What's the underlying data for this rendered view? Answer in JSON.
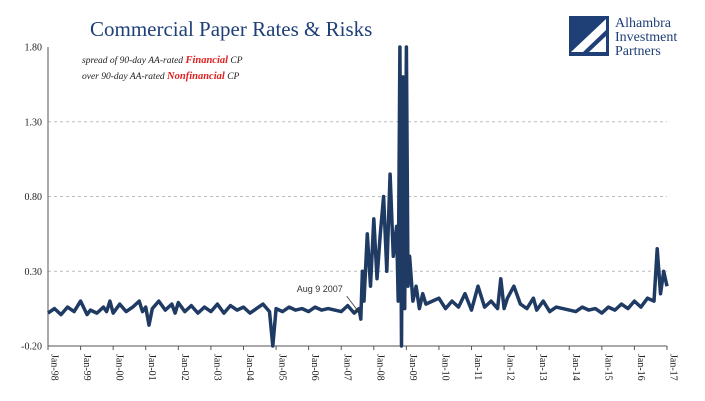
{
  "chart_data": {
    "type": "line",
    "title": "Commercial Paper Rates & Risks",
    "subtitle_lines": [
      {
        "pre": "spread of 90-day AA-rated ",
        "em": "Financial",
        "post": " CP"
      },
      {
        "pre": "over 90-day AA-rated ",
        "em": "Nonfinancial",
        "post": " CP"
      }
    ],
    "xlabel": "",
    "ylabel": "",
    "ylim": [
      -0.2,
      1.8
    ],
    "y_ticks": [
      "1.80",
      "1.30",
      "0.80",
      "0.30",
      "-0.20"
    ],
    "y_tick_values": [
      1.8,
      1.3,
      0.8,
      0.3,
      -0.2
    ],
    "x_ticks": [
      "Jan-98",
      "Jan-99",
      "Jan-00",
      "Jan-01",
      "Jan-02",
      "Jan-03",
      "Jan-04",
      "Jan-05",
      "Jan-06",
      "Jan-07",
      "Jan-08",
      "Jan-09",
      "Jan-10",
      "Jan-11",
      "Jan-12",
      "Jan-13",
      "Jan-14",
      "Jan-15",
      "Jan-16",
      "Jan-17"
    ],
    "xlim": [
      1998.0,
      2017.0
    ],
    "grid": true,
    "line_color": "#1f3a63",
    "annotation": {
      "text": "Aug 9 2007",
      "x": 2007.6,
      "y": 0.0
    },
    "series": [
      {
        "x": [
          1998.0,
          1998.2,
          1998.4,
          1998.6,
          1998.8,
          1999.0,
          1999.2,
          1999.3,
          1999.5,
          1999.7,
          1999.8,
          1999.9,
          2000.0,
          2000.2,
          2000.4,
          2000.6,
          2000.8,
          2000.9,
          2001.0,
          2001.1,
          2001.2,
          2001.4,
          2001.6,
          2001.8,
          2001.9,
          2002.0,
          2002.2,
          2002.4,
          2002.6,
          2002.8,
          2003.0,
          2003.2,
          2003.4,
          2003.6,
          2003.8,
          2004.0,
          2004.2,
          2004.4,
          2004.6,
          2004.8,
          2004.9,
          2005.0,
          2005.2,
          2005.4,
          2005.6,
          2005.8,
          2006.0,
          2006.2,
          2006.4,
          2006.6,
          2006.8,
          2007.0,
          2007.2,
          2007.4,
          2007.55,
          2007.6,
          2007.65,
          2007.7,
          2007.8,
          2007.9,
          2008.0,
          2008.1,
          2008.2,
          2008.3,
          2008.4,
          2008.5,
          2008.6,
          2008.7,
          2008.75,
          2008.8,
          2008.85,
          2008.9,
          2008.95,
          2009.0,
          2009.05,
          2009.1,
          2009.2,
          2009.3,
          2009.4,
          2009.5,
          2009.6,
          2009.8,
          2010.0,
          2010.2,
          2010.4,
          2010.6,
          2010.8,
          2011.0,
          2011.2,
          2011.4,
          2011.6,
          2011.8,
          2011.9,
          2012.0,
          2012.1,
          2012.3,
          2012.5,
          2012.7,
          2012.9,
          2013.0,
          2013.2,
          2013.4,
          2013.6,
          2013.8,
          2014.0,
          2014.2,
          2014.4,
          2014.6,
          2014.8,
          2015.0,
          2015.2,
          2015.4,
          2015.6,
          2015.8,
          2016.0,
          2016.2,
          2016.4,
          2016.6,
          2016.7,
          2016.8,
          2016.9,
          2017.0
        ],
        "y": [
          0.02,
          0.05,
          0.01,
          0.06,
          0.03,
          0.1,
          0.01,
          0.04,
          0.02,
          0.06,
          0.03,
          0.1,
          0.02,
          0.08,
          0.03,
          0.06,
          0.1,
          0.03,
          0.06,
          -0.06,
          0.05,
          0.1,
          0.04,
          0.08,
          0.02,
          0.09,
          0.03,
          0.07,
          0.02,
          0.06,
          0.03,
          0.08,
          0.02,
          0.07,
          0.04,
          0.06,
          0.02,
          0.05,
          0.08,
          0.03,
          -0.2,
          0.05,
          0.03,
          0.06,
          0.04,
          0.05,
          0.03,
          0.06,
          0.04,
          0.05,
          0.04,
          0.03,
          0.07,
          0.02,
          0.05,
          -0.02,
          0.3,
          0.1,
          0.55,
          0.2,
          0.65,
          0.25,
          0.55,
          0.8,
          0.3,
          0.95,
          0.4,
          0.6,
          0.1,
          1.8,
          -0.2,
          1.6,
          0.05,
          1.8,
          0.2,
          0.4,
          0.1,
          0.2,
          0.05,
          0.15,
          0.08,
          0.1,
          0.12,
          0.05,
          0.1,
          0.06,
          0.15,
          0.04,
          0.2,
          0.06,
          0.1,
          0.05,
          0.25,
          0.05,
          0.12,
          0.2,
          0.08,
          0.05,
          0.12,
          0.04,
          0.1,
          0.03,
          0.06,
          0.05,
          0.04,
          0.03,
          0.06,
          0.04,
          0.05,
          0.02,
          0.06,
          0.04,
          0.08,
          0.05,
          0.1,
          0.06,
          0.12,
          0.1,
          0.45,
          0.15,
          0.3,
          0.2
        ]
      }
    ]
  },
  "logo": {
    "line1": "Alhambra",
    "line2": "Investment",
    "line3": "Partners",
    "icon": "alhambra-logo-icon"
  }
}
